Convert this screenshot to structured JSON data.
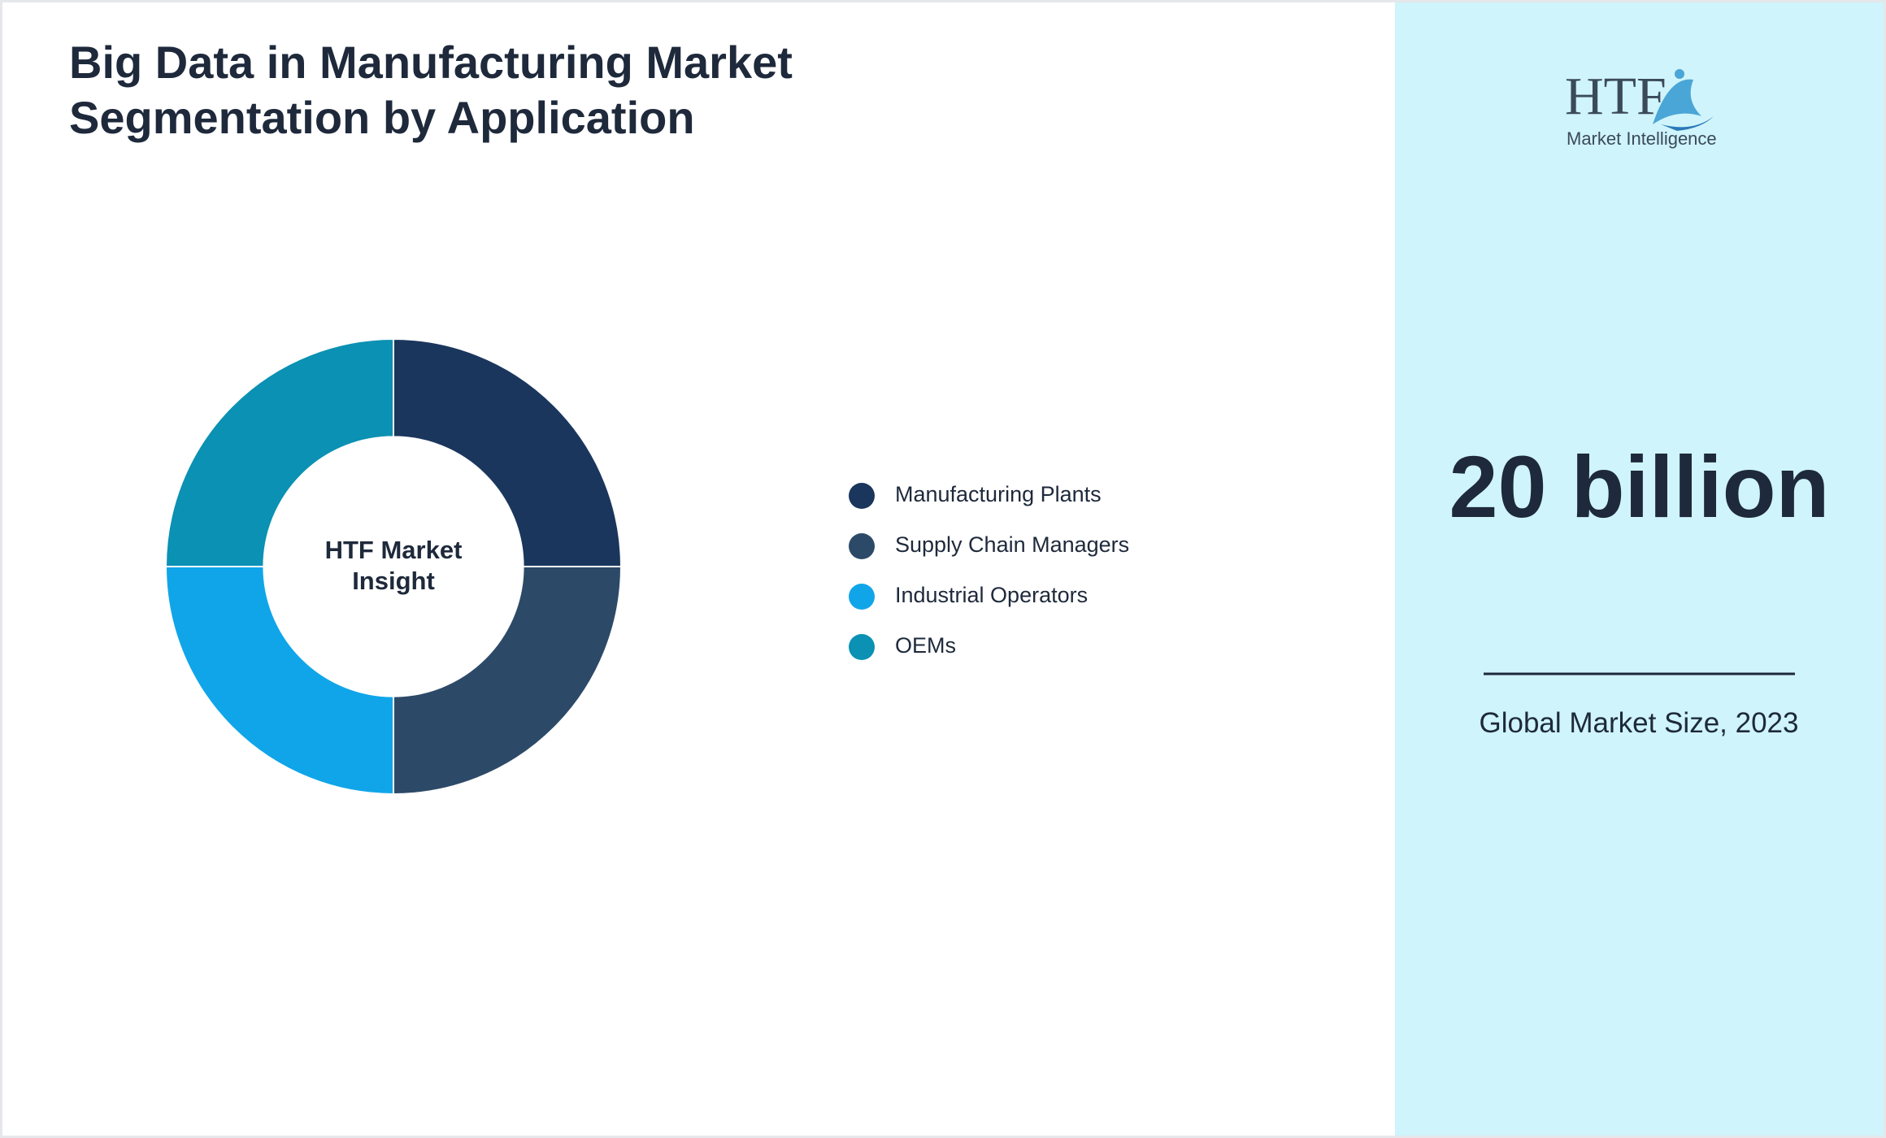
{
  "chart_data": {
    "type": "pie",
    "title": "Big Data in Manufacturing Market Segmentation by Application",
    "center_label": "HTF Market Insight",
    "categories": [
      "Manufacturing Plants",
      "Supply Chain Managers",
      "Industrial Operators",
      "OEMs"
    ],
    "values": [
      25,
      25,
      25,
      25
    ],
    "colors": [
      "#1a365d",
      "#2c4a68",
      "#10a5e9",
      "#0a91b3"
    ],
    "inner_radius_ratio": 0.57,
    "legend": "right"
  },
  "side_panel": {
    "logo": {
      "brand": "HTF",
      "tagline": "Market Intelligence"
    },
    "market_size": "20 billion",
    "caption": "Global Market Size, 2023"
  }
}
